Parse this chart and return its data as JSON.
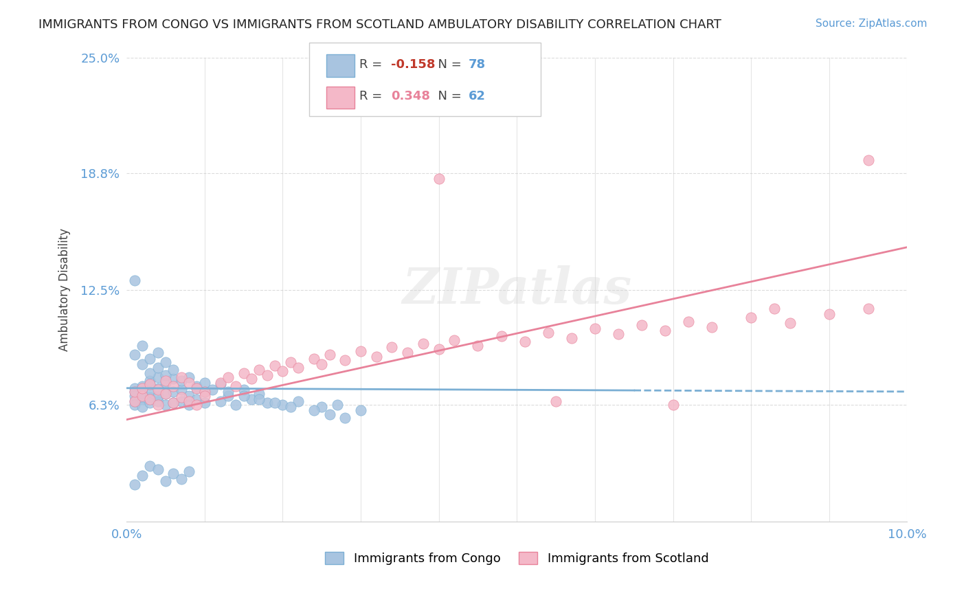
{
  "title": "IMMIGRANTS FROM CONGO VS IMMIGRANTS FROM SCOTLAND AMBULATORY DISABILITY CORRELATION CHART",
  "source": "Source: ZipAtlas.com",
  "xlabel": "",
  "ylabel": "Ambulatory Disability",
  "xlim": [
    0.0,
    0.1
  ],
  "ylim": [
    0.0,
    0.25
  ],
  "xticks": [
    0.0,
    0.01,
    0.02,
    0.03,
    0.04,
    0.05,
    0.06,
    0.07,
    0.08,
    0.09,
    0.1
  ],
  "xticklabels": [
    "0.0%",
    "",
    "",
    "",
    "",
    "",
    "",
    "",
    "",
    "",
    "10.0%"
  ],
  "ytick_labels": [
    "6.3%",
    "12.5%",
    "18.8%",
    "25.0%"
  ],
  "ytick_values": [
    0.063,
    0.125,
    0.188,
    0.25
  ],
  "grid_color": "#cccccc",
  "background_color": "#ffffff",
  "watermark": "ZIPatlas",
  "congo_color": "#a8c4e0",
  "congo_edge_color": "#7bafd4",
  "scotland_color": "#f4b8c8",
  "scotland_edge_color": "#e8829a",
  "congo_line_color": "#7bafd4",
  "scotland_line_color": "#e8829a",
  "legend_R_congo": "R = -0.158",
  "legend_N_congo": "N = 78",
  "legend_R_scotland": "R = 0.348",
  "legend_N_scotland": "N = 62",
  "congo_R": -0.158,
  "congo_N": 78,
  "scotland_R": 0.348,
  "scotland_N": 62,
  "congo_points_x": [
    0.001,
    0.001,
    0.001,
    0.001,
    0.001,
    0.002,
    0.002,
    0.002,
    0.002,
    0.002,
    0.003,
    0.003,
    0.003,
    0.003,
    0.003,
    0.004,
    0.004,
    0.004,
    0.004,
    0.005,
    0.005,
    0.005,
    0.006,
    0.006,
    0.006,
    0.007,
    0.007,
    0.008,
    0.008,
    0.009,
    0.009,
    0.01,
    0.01,
    0.012,
    0.013,
    0.014,
    0.015,
    0.016,
    0.017,
    0.018,
    0.02,
    0.022,
    0.025,
    0.027,
    0.03,
    0.001,
    0.001,
    0.002,
    0.002,
    0.003,
    0.003,
    0.004,
    0.004,
    0.005,
    0.005,
    0.006,
    0.007,
    0.008,
    0.009,
    0.01,
    0.011,
    0.012,
    0.013,
    0.015,
    0.017,
    0.019,
    0.021,
    0.024,
    0.026,
    0.028,
    0.001,
    0.002,
    0.003,
    0.004,
    0.005,
    0.006,
    0.007,
    0.008
  ],
  "congo_points_y": [
    0.07,
    0.065,
    0.072,
    0.068,
    0.063,
    0.071,
    0.066,
    0.069,
    0.073,
    0.062,
    0.067,
    0.074,
    0.064,
    0.07,
    0.076,
    0.065,
    0.068,
    0.072,
    0.078,
    0.063,
    0.069,
    0.075,
    0.064,
    0.07,
    0.077,
    0.065,
    0.071,
    0.063,
    0.068,
    0.072,
    0.066,
    0.064,
    0.07,
    0.065,
    0.068,
    0.063,
    0.071,
    0.066,
    0.069,
    0.064,
    0.063,
    0.065,
    0.062,
    0.063,
    0.06,
    0.13,
    0.09,
    0.085,
    0.095,
    0.08,
    0.088,
    0.083,
    0.091,
    0.079,
    0.086,
    0.082,
    0.076,
    0.078,
    0.073,
    0.075,
    0.071,
    0.074,
    0.07,
    0.068,
    0.066,
    0.064,
    0.062,
    0.06,
    0.058,
    0.056,
    0.02,
    0.025,
    0.03,
    0.028,
    0.022,
    0.026,
    0.023,
    0.027
  ],
  "scotland_points_x": [
    0.001,
    0.001,
    0.002,
    0.002,
    0.003,
    0.003,
    0.004,
    0.004,
    0.005,
    0.005,
    0.006,
    0.006,
    0.007,
    0.007,
    0.008,
    0.008,
    0.009,
    0.009,
    0.01,
    0.01,
    0.012,
    0.013,
    0.014,
    0.015,
    0.016,
    0.017,
    0.018,
    0.019,
    0.02,
    0.021,
    0.022,
    0.024,
    0.025,
    0.026,
    0.028,
    0.03,
    0.032,
    0.034,
    0.036,
    0.038,
    0.04,
    0.042,
    0.045,
    0.048,
    0.051,
    0.054,
    0.057,
    0.06,
    0.063,
    0.066,
    0.069,
    0.072,
    0.075,
    0.08,
    0.085,
    0.09,
    0.095,
    0.04,
    0.055,
    0.07,
    0.083,
    0.095
  ],
  "scotland_points_y": [
    0.065,
    0.07,
    0.068,
    0.072,
    0.066,
    0.074,
    0.063,
    0.071,
    0.069,
    0.076,
    0.064,
    0.073,
    0.067,
    0.078,
    0.065,
    0.075,
    0.063,
    0.072,
    0.07,
    0.068,
    0.075,
    0.078,
    0.073,
    0.08,
    0.077,
    0.082,
    0.079,
    0.084,
    0.081,
    0.086,
    0.083,
    0.088,
    0.085,
    0.09,
    0.087,
    0.092,
    0.089,
    0.094,
    0.091,
    0.096,
    0.093,
    0.098,
    0.095,
    0.1,
    0.097,
    0.102,
    0.099,
    0.104,
    0.101,
    0.106,
    0.103,
    0.108,
    0.105,
    0.11,
    0.107,
    0.112,
    0.115,
    0.185,
    0.065,
    0.063,
    0.115,
    0.195
  ]
}
